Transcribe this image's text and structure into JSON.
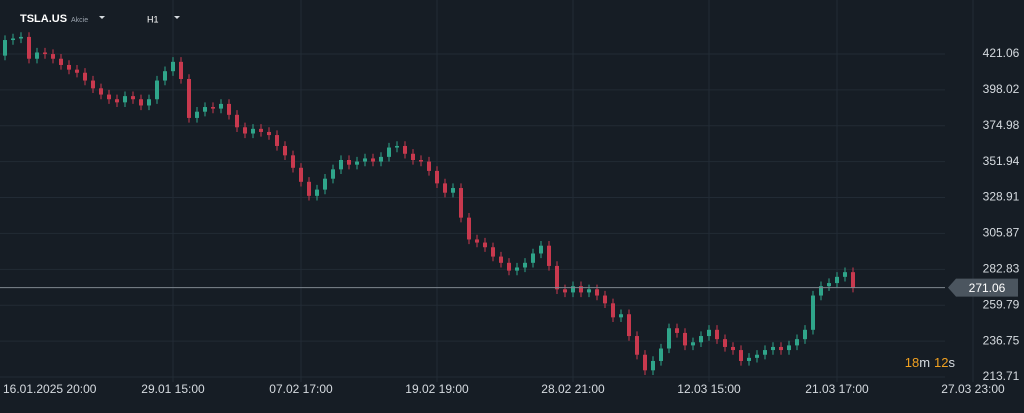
{
  "header": {
    "symbol": "TSLA.US",
    "kind": "Akcie",
    "timeframe": "H1"
  },
  "countdown": [
    "18",
    "m",
    "12",
    "s"
  ],
  "chart_data": {
    "type": "candlestick",
    "categories": [
      "16.01.2025 20:00",
      null,
      null,
      null,
      null,
      null,
      null,
      null,
      null,
      null,
      null,
      null,
      null,
      null,
      null,
      null,
      null,
      null,
      null,
      null,
      null,
      "29.01 15:00",
      null,
      null,
      null,
      null,
      null,
      null,
      null,
      null,
      null,
      null,
      null,
      null,
      null,
      null,
      null,
      "07.02 17:00",
      null,
      null,
      null,
      null,
      null,
      null,
      null,
      null,
      null,
      null,
      null,
      null,
      null,
      null,
      null,
      null,
      "19.02 19:00",
      null,
      null,
      null,
      null,
      null,
      null,
      null,
      null,
      null,
      null,
      null,
      null,
      null,
      null,
      null,
      null,
      "28.02 21:00",
      null,
      null,
      null,
      null,
      null,
      null,
      null,
      null,
      null,
      null,
      null,
      null,
      null,
      null,
      null,
      null,
      "12.03 15:00",
      null,
      null,
      null,
      null,
      null,
      null,
      null,
      null,
      null,
      null,
      null,
      null,
      null,
      null,
      null,
      "21.03 17:00",
      null,
      null,
      null,
      null,
      null,
      null,
      null,
      null,
      null,
      null,
      null,
      null,
      null,
      null,
      null,
      null,
      "27.03 23:00"
    ],
    "open": [
      420,
      430,
      431,
      432,
      418,
      422,
      421,
      418,
      414,
      411,
      409,
      404,
      399,
      395,
      392,
      390,
      394,
      392,
      388,
      392,
      404,
      410,
      416,
      405,
      380,
      384,
      387,
      386,
      389,
      382,
      374,
      370,
      373,
      371,
      369,
      362,
      356,
      348,
      339,
      330,
      334,
      341,
      347,
      353,
      350,
      352,
      354,
      352,
      355,
      361,
      362,
      357,
      353,
      352,
      346,
      338,
      332,
      335,
      316,
      302,
      300,
      297,
      291,
      287,
      282,
      284,
      287,
      293,
      298,
      285,
      270,
      268,
      272,
      268,
      270,
      266,
      261,
      252,
      254,
      240,
      228,
      218,
      224,
      232,
      245,
      242,
      234,
      236,
      240,
      244,
      238,
      233,
      231,
      224,
      226,
      228,
      231,
      233,
      231,
      234,
      238,
      244,
      266,
      272,
      274,
      278,
      281,
      null,
      null,
      null,
      null,
      null,
      null,
      null,
      null,
      null,
      null,
      null,
      null,
      null,
      null,
      null
    ],
    "high": [
      433,
      434,
      435,
      435,
      425,
      425,
      424,
      421,
      417,
      414,
      412,
      407,
      402,
      398,
      395,
      397,
      397,
      395,
      395,
      407,
      413,
      419,
      419,
      408,
      387,
      390,
      390,
      392,
      392,
      385,
      377,
      376,
      376,
      374,
      372,
      365,
      359,
      351,
      342,
      337,
      344,
      350,
      356,
      356,
      355,
      357,
      357,
      358,
      364,
      365,
      365,
      360,
      356,
      355,
      349,
      341,
      338,
      338,
      319,
      305,
      303,
      300,
      294,
      290,
      287,
      290,
      296,
      301,
      301,
      288,
      273,
      275,
      275,
      273,
      273,
      269,
      264,
      257,
      257,
      243,
      231,
      227,
      235,
      248,
      248,
      245,
      239,
      243,
      247,
      247,
      241,
      236,
      234,
      229,
      231,
      234,
      236,
      236,
      237,
      241,
      247,
      269,
      275,
      277,
      281,
      284,
      284,
      null,
      null,
      null,
      null,
      null,
      null,
      null,
      null,
      null,
      null,
      null,
      null,
      null,
      null,
      null
    ],
    "low": [
      417,
      427,
      428,
      415,
      415,
      418,
      415,
      411,
      408,
      406,
      401,
      396,
      392,
      389,
      387,
      387,
      389,
      385,
      385,
      389,
      401,
      407,
      402,
      377,
      377,
      381,
      383,
      383,
      379,
      371,
      367,
      367,
      368,
      366,
      359,
      353,
      345,
      336,
      327,
      327,
      331,
      338,
      344,
      347,
      347,
      349,
      349,
      349,
      352,
      358,
      354,
      350,
      349,
      343,
      335,
      329,
      329,
      313,
      299,
      297,
      294,
      288,
      284,
      279,
      279,
      281,
      284,
      290,
      282,
      267,
      265,
      265,
      265,
      265,
      263,
      258,
      249,
      249,
      237,
      225,
      215,
      215,
      221,
      229,
      239,
      231,
      231,
      233,
      237,
      235,
      230,
      228,
      221,
      221,
      223,
      225,
      228,
      228,
      228,
      231,
      235,
      241,
      263,
      269,
      271,
      275,
      268,
      null,
      null,
      null,
      null,
      null,
      null,
      null,
      null,
      null,
      null,
      null,
      null,
      null,
      null,
      null
    ],
    "close": [
      430,
      431,
      432,
      418,
      422,
      421,
      418,
      414,
      411,
      409,
      404,
      399,
      395,
      392,
      390,
      394,
      392,
      388,
      392,
      404,
      410,
      416,
      405,
      380,
      384,
      387,
      386,
      389,
      382,
      374,
      370,
      373,
      371,
      369,
      362,
      356,
      348,
      339,
      330,
      334,
      341,
      347,
      353,
      350,
      352,
      354,
      352,
      355,
      361,
      362,
      357,
      353,
      352,
      346,
      338,
      332,
      335,
      316,
      302,
      300,
      297,
      291,
      287,
      282,
      284,
      287,
      293,
      298,
      285,
      270,
      268,
      272,
      268,
      270,
      266,
      261,
      252,
      254,
      240,
      228,
      218,
      224,
      232,
      245,
      242,
      234,
      236,
      240,
      244,
      238,
      233,
      231,
      224,
      226,
      228,
      231,
      233,
      231,
      234,
      238,
      244,
      266,
      272,
      274,
      278,
      281,
      271.06,
      null,
      null,
      null,
      null,
      null,
      null,
      null,
      null,
      null,
      null,
      null,
      null,
      null,
      null,
      null
    ],
    "up_color": "#2fa58a",
    "down_color": "#c8394e",
    "ylim": [
      210.5,
      455.7
    ],
    "yticks": [
      421.06,
      398.02,
      374.98,
      351.94,
      328.91,
      305.87,
      282.83,
      259.79,
      236.75,
      213.71
    ],
    "grid": true,
    "current_price": 271.06
  }
}
